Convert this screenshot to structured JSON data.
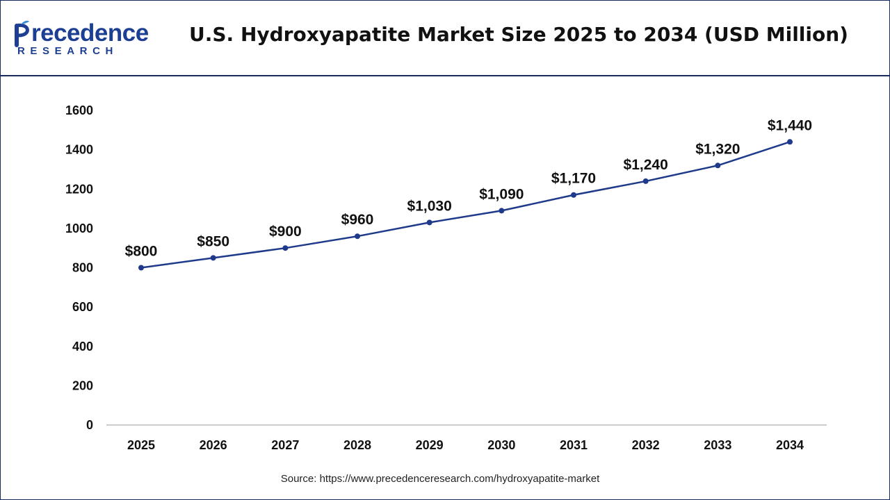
{
  "header": {
    "logo_word": "recedence",
    "logo_sub": "RESEARCH",
    "title": "U.S. Hydroxyapatite Market Size 2025 to 2034 (USD Million)"
  },
  "footer": {
    "source": "Source: https://www.precedenceresearch.com/hydroxyapatite-market"
  },
  "colors": {
    "line": "#1f3a8a",
    "marker": "#1f3a8a",
    "axis": "#bbbbbb",
    "brand": "#1d3f93"
  },
  "chart_data": {
    "type": "line",
    "title": "U.S. Hydroxyapatite Market Size 2025 to 2034 (USD Million)",
    "categories": [
      "2025",
      "2026",
      "2027",
      "2028",
      "2029",
      "2030",
      "2031",
      "2032",
      "2033",
      "2034"
    ],
    "series": [
      {
        "values": [
          800,
          850,
          900,
          960,
          1030,
          1090,
          1170,
          1240,
          1320,
          1440
        ],
        "labels": [
          "$800",
          "$850",
          "$900",
          "$960",
          "$1,030",
          "$1,090",
          "$1,170",
          "$1,240",
          "$1,320",
          "$1,440"
        ]
      }
    ],
    "ylim": [
      0,
      1600
    ],
    "yticks": [
      0,
      200,
      400,
      600,
      800,
      1000,
      1200,
      1400,
      1600
    ],
    "grid": false,
    "legend": "none"
  }
}
